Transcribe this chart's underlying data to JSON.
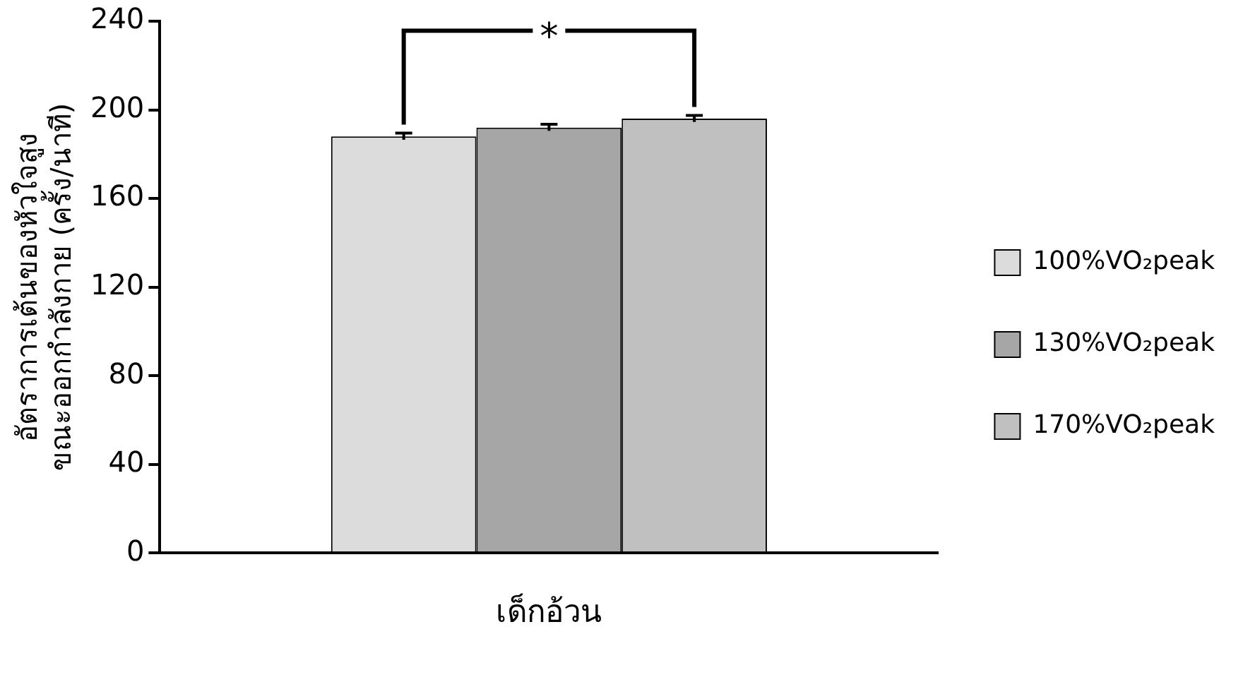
{
  "chart_data": {
    "type": "bar",
    "ylabel": "อัตราการเต้นของหัวใจสูง\nขณะออกกำลังกาย (ครั้ง/นาที)",
    "categories": [
      "เด็กอ้วน"
    ],
    "series": [
      {
        "name": "100%VO₂peak",
        "color": "#dcdcdc",
        "values": [
          188
        ],
        "errors": [
          1.5
        ]
      },
      {
        "name": "130%VO₂peak",
        "color": "#a6a6a6",
        "values": [
          192
        ],
        "errors": [
          1.5
        ]
      },
      {
        "name": "170%VO₂peak",
        "color": "#c0c0c0",
        "values": [
          196
        ],
        "errors": [
          1.5
        ]
      }
    ],
    "ylim": [
      0,
      240
    ],
    "yticks": [
      0,
      40,
      80,
      120,
      160,
      200,
      240
    ],
    "grid": false,
    "legend": "right",
    "annotations": [
      "*"
    ]
  }
}
